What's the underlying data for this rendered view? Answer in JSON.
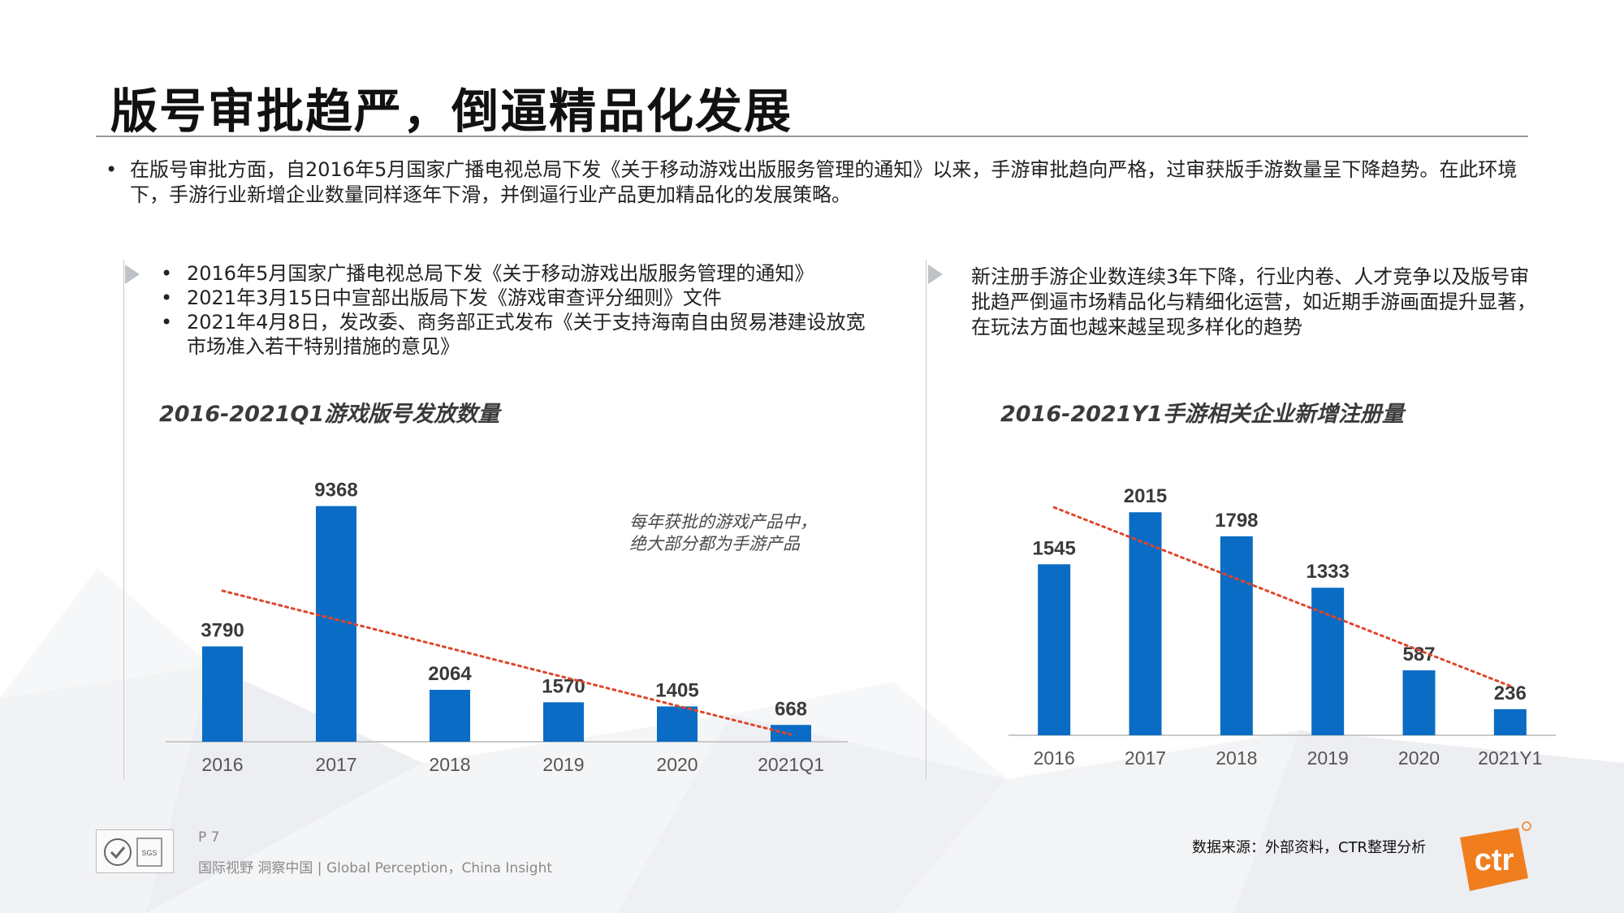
{
  "title": "版号审批趋严，倒逼精品化发展",
  "intro": {
    "bullet": "•",
    "text": "在版号审批方面，自2016年5月国家广播电视总局下发《关于移动游戏出版服务管理的通知》以来，手游审批趋向严格，过审获版手游数量呈下降趋势。在此环境下，手游行业新增企业数量同样逐年下滑，并倒逼行业产品更加精品化的发展策略。"
  },
  "left_panel": {
    "bullets": [
      "2016年5月国家广播电视总局下发《关于移动游戏出版服务管理的通知》",
      "2021年3月15日中宣部出版局下发《游戏审查评分细则》文件",
      "2021年4月8日，发改委、商务部正式发布《关于支持海南自由贸易港建设放宽市场准入若干特别措施的意见》"
    ],
    "bullet_symbol": "•",
    "annotation": "每年获批的游戏产品中，绝大部分都为手游产品"
  },
  "right_panel": {
    "note": "新注册手游企业数连续3年下降，行业内卷、人才竞争以及版号审批趋严倒逼市场精品化与精细化运营，如近期手游画面提升显著，在玩法方面也越来越呈现多样化的趋势"
  },
  "chart_data": [
    {
      "type": "bar",
      "title": "2016-2021Q1游戏版号发放数量",
      "categories": [
        "2016",
        "2017",
        "2018",
        "2019",
        "2020",
        "2021Q1"
      ],
      "values": [
        3790,
        9368,
        2064,
        1570,
        1405,
        668
      ],
      "ylim": [
        0,
        10000
      ],
      "grid": false,
      "trendline": "linear, dotted",
      "bar_color": "#0a6cc4",
      "trend_color": "#e0452b"
    },
    {
      "type": "bar",
      "title": "2016-2021Y1手游相关企业新增注册量",
      "categories": [
        "2016",
        "2017",
        "2018",
        "2019",
        "2020",
        "2021Y1"
      ],
      "values": [
        1545,
        2015,
        1798,
        1333,
        587,
        236
      ],
      "ylim": [
        0,
        2200
      ],
      "grid": false,
      "trendline": "linear, dotted",
      "bar_color": "#0a6cc4",
      "trend_color": "#e0452b"
    }
  ],
  "footer": {
    "page": "P 7",
    "slogan": "国际视野  洞察中国 |  Global Perception，China Insight",
    "source": "数据来源：外部资料，CTR整理分析",
    "logo_text": "ctr",
    "cert_text": "SGS"
  }
}
